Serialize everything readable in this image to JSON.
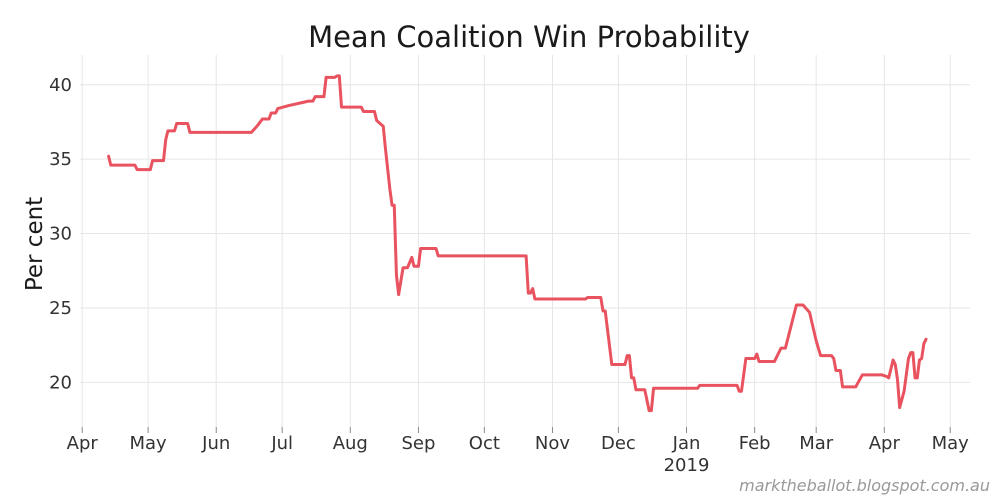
{
  "chart_data": {
    "type": "line",
    "title": "Mean Coalition Win Probability",
    "xlabel": "",
    "ylabel": "Per cent",
    "ylim": [
      17,
      42
    ],
    "yticks": [
      20,
      25,
      30,
      35,
      40
    ],
    "xlim": [
      "2018-03-31",
      "2019-05-10"
    ],
    "xticks": [
      {
        "date": "2018-04-01",
        "label": "Apr"
      },
      {
        "date": "2018-05-01",
        "label": "May"
      },
      {
        "date": "2018-06-01",
        "label": "Jun"
      },
      {
        "date": "2018-07-01",
        "label": "Jul"
      },
      {
        "date": "2018-08-01",
        "label": "Aug"
      },
      {
        "date": "2018-09-01",
        "label": "Sep"
      },
      {
        "date": "2018-10-01",
        "label": "Oct"
      },
      {
        "date": "2018-11-01",
        "label": "Nov"
      },
      {
        "date": "2018-12-01",
        "label": "Dec"
      },
      {
        "date": "2019-01-01",
        "label": "Jan",
        "sublabel": "2019"
      },
      {
        "date": "2019-02-01",
        "label": "Feb"
      },
      {
        "date": "2019-03-01",
        "label": "Mar"
      },
      {
        "date": "2019-04-01",
        "label": "Apr"
      },
      {
        "date": "2019-05-01",
        "label": "May"
      }
    ],
    "grid": true,
    "series": [
      {
        "name": "Mean Coalition Win Probability",
        "color": "#e8535f",
        "points": [
          [
            "2018-04-13",
            35.2
          ],
          [
            "2018-04-14",
            34.6
          ],
          [
            "2018-04-20",
            34.6
          ],
          [
            "2018-04-25",
            34.6
          ],
          [
            "2018-04-26",
            34.3
          ],
          [
            "2018-05-02",
            34.3
          ],
          [
            "2018-05-03",
            34.9
          ],
          [
            "2018-05-08",
            34.9
          ],
          [
            "2018-05-09",
            36.3
          ],
          [
            "2018-05-10",
            36.9
          ],
          [
            "2018-05-13",
            36.9
          ],
          [
            "2018-05-14",
            37.4
          ],
          [
            "2018-05-19",
            37.4
          ],
          [
            "2018-05-20",
            36.8
          ],
          [
            "2018-06-01",
            36.8
          ],
          [
            "2018-06-17",
            36.8
          ],
          [
            "2018-06-20",
            37.3
          ],
          [
            "2018-06-22",
            37.7
          ],
          [
            "2018-06-25",
            37.7
          ],
          [
            "2018-06-26",
            38.1
          ],
          [
            "2018-06-28",
            38.1
          ],
          [
            "2018-06-29",
            38.4
          ],
          [
            "2018-07-04",
            38.6
          ],
          [
            "2018-07-10",
            38.8
          ],
          [
            "2018-07-13",
            38.9
          ],
          [
            "2018-07-15",
            38.9
          ],
          [
            "2018-07-16",
            39.2
          ],
          [
            "2018-07-20",
            39.2
          ],
          [
            "2018-07-21",
            40.5
          ],
          [
            "2018-07-25",
            40.5
          ],
          [
            "2018-07-26",
            40.6
          ],
          [
            "2018-07-27",
            40.6
          ],
          [
            "2018-07-28",
            38.5
          ],
          [
            "2018-08-06",
            38.5
          ],
          [
            "2018-08-07",
            38.2
          ],
          [
            "2018-08-12",
            38.2
          ],
          [
            "2018-08-13",
            37.6
          ],
          [
            "2018-08-16",
            37.2
          ],
          [
            "2018-08-17",
            35.7
          ],
          [
            "2018-08-19",
            33.0
          ],
          [
            "2018-08-20",
            31.9
          ],
          [
            "2018-08-21",
            31.9
          ],
          [
            "2018-08-22",
            27.2
          ],
          [
            "2018-08-23",
            25.9
          ],
          [
            "2018-08-25",
            27.7
          ],
          [
            "2018-08-27",
            27.7
          ],
          [
            "2018-08-29",
            28.4
          ],
          [
            "2018-08-30",
            27.8
          ],
          [
            "2018-09-01",
            27.8
          ],
          [
            "2018-09-02",
            29.0
          ],
          [
            "2018-09-09",
            29.0
          ],
          [
            "2018-09-10",
            28.5
          ],
          [
            "2018-10-01",
            28.5
          ],
          [
            "2018-10-20",
            28.5
          ],
          [
            "2018-10-21",
            26.0
          ],
          [
            "2018-10-22",
            26.0
          ],
          [
            "2018-10-23",
            26.3
          ],
          [
            "2018-10-24",
            25.6
          ],
          [
            "2018-11-01",
            25.6
          ],
          [
            "2018-11-16",
            25.6
          ],
          [
            "2018-11-17",
            25.7
          ],
          [
            "2018-11-23",
            25.7
          ],
          [
            "2018-11-24",
            24.8
          ],
          [
            "2018-11-25",
            24.8
          ],
          [
            "2018-11-28",
            21.2
          ],
          [
            "2018-12-04",
            21.2
          ],
          [
            "2018-12-05",
            21.8
          ],
          [
            "2018-12-06",
            21.8
          ],
          [
            "2018-12-07",
            20.3
          ],
          [
            "2018-12-08",
            20.3
          ],
          [
            "2018-12-09",
            19.5
          ],
          [
            "2018-12-13",
            19.5
          ],
          [
            "2018-12-15",
            18.1
          ],
          [
            "2018-12-16",
            18.1
          ],
          [
            "2018-12-17",
            19.6
          ],
          [
            "2019-01-06",
            19.6
          ],
          [
            "2019-01-07",
            19.8
          ],
          [
            "2019-01-24",
            19.8
          ],
          [
            "2019-01-25",
            19.4
          ],
          [
            "2019-01-26",
            19.4
          ],
          [
            "2019-01-28",
            21.6
          ],
          [
            "2019-02-01",
            21.6
          ],
          [
            "2019-02-02",
            21.9
          ],
          [
            "2019-02-03",
            21.4
          ],
          [
            "2019-02-10",
            21.4
          ],
          [
            "2019-02-13",
            22.3
          ],
          [
            "2019-02-15",
            22.3
          ],
          [
            "2019-02-20",
            25.2
          ],
          [
            "2019-02-23",
            25.2
          ],
          [
            "2019-02-26",
            24.7
          ],
          [
            "2019-03-01",
            22.8
          ],
          [
            "2019-03-03",
            21.8
          ],
          [
            "2019-03-08",
            21.8
          ],
          [
            "2019-03-09",
            21.6
          ],
          [
            "2019-03-10",
            20.8
          ],
          [
            "2019-03-12",
            20.8
          ],
          [
            "2019-03-13",
            19.7
          ],
          [
            "2019-03-19",
            19.7
          ],
          [
            "2019-03-22",
            20.5
          ],
          [
            "2019-03-31",
            20.5
          ],
          [
            "2019-04-02",
            20.4
          ],
          [
            "2019-04-03",
            20.3
          ],
          [
            "2019-04-05",
            21.5
          ],
          [
            "2019-04-06",
            21.2
          ],
          [
            "2019-04-07",
            20.2
          ],
          [
            "2019-04-08",
            18.3
          ],
          [
            "2019-04-10",
            19.4
          ],
          [
            "2019-04-12",
            21.6
          ],
          [
            "2019-04-13",
            22.0
          ],
          [
            "2019-04-14",
            22.0
          ],
          [
            "2019-04-15",
            20.3
          ],
          [
            "2019-04-16",
            20.3
          ],
          [
            "2019-04-17",
            21.5
          ],
          [
            "2019-04-18",
            21.6
          ],
          [
            "2019-04-19",
            22.6
          ],
          [
            "2019-04-20",
            22.9
          ]
        ]
      }
    ]
  },
  "credit": "marktheballot.blogspot.com.au"
}
